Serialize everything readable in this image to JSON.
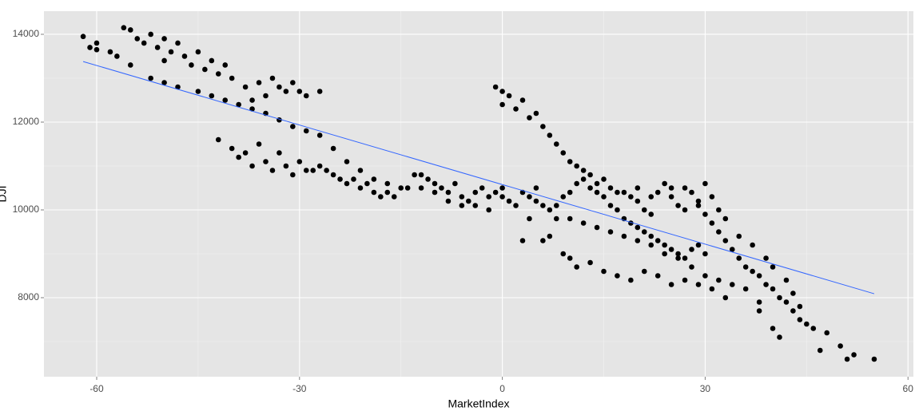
{
  "chart_data": {
    "type": "scatter",
    "x_label": "MarketIndex",
    "y_label": "DJI",
    "xlim": [
      -67.8,
      60.8
    ],
    "ylim": [
      6200,
      14527
    ],
    "xticks": [
      -60,
      -30,
      0,
      30,
      60
    ],
    "yticks": [
      8000,
      10000,
      12000,
      14000
    ],
    "xminor": [
      -45,
      -15,
      15,
      45
    ],
    "yminor": [
      7000,
      9000,
      11000,
      13000
    ],
    "grid": true,
    "color": "#000000",
    "trend": {
      "x": [
        -62,
        55
      ],
      "y": [
        13380,
        8090
      ],
      "color": "#3366ff"
    },
    "x": [
      -62,
      -61,
      -60,
      -60,
      -58,
      -57,
      -56,
      -55,
      -55,
      -54,
      -53,
      -52,
      -51,
      -50,
      -50,
      -49,
      -48,
      -47,
      -46,
      -45,
      -44,
      -43,
      -42,
      -41,
      -40,
      -52,
      -50,
      -48,
      -45,
      -43,
      -41,
      -39,
      -37,
      -35,
      -33,
      -31,
      -29,
      -27,
      -25,
      -23,
      -21,
      -19,
      -17,
      -15,
      -36,
      -35,
      -34,
      -33,
      -32,
      -31,
      -30,
      -29,
      -27,
      -38,
      -37,
      -42,
      -40,
      -39,
      -38,
      -37,
      -36,
      -35,
      -34,
      -33,
      -32,
      -31,
      -30,
      -29,
      -28,
      -27,
      -26,
      -25,
      -24,
      -23,
      -22,
      -21,
      -20,
      -19,
      -18,
      -17,
      -16,
      -14,
      -13,
      -12,
      -11,
      -10,
      -9,
      -8,
      -7,
      -6,
      -5,
      -4,
      -3,
      -2,
      -1,
      0,
      1,
      -12,
      -10,
      -8,
      -6,
      -4,
      -2,
      -1,
      0,
      0,
      1,
      2,
      3,
      4,
      5,
      6,
      7,
      8,
      9,
      10,
      11,
      12,
      13,
      14,
      15,
      16,
      17,
      18,
      19,
      20,
      21,
      22,
      23,
      24,
      25,
      26,
      27,
      28,
      29,
      30,
      31,
      32,
      33,
      34,
      35,
      36,
      37,
      38,
      39,
      40,
      41,
      42,
      43,
      44,
      46,
      48,
      47,
      50,
      52,
      55,
      51,
      45,
      38,
      40,
      41,
      3,
      4,
      5,
      6,
      7,
      8,
      9,
      10,
      11,
      12,
      13,
      14,
      15,
      16,
      17,
      18,
      19,
      20,
      21,
      22,
      23,
      24,
      25,
      26,
      27,
      28,
      29,
      30,
      8,
      10,
      12,
      14,
      16,
      18,
      20,
      22,
      24,
      26,
      28,
      30,
      32,
      34,
      36,
      38,
      6,
      7,
      9,
      10,
      11,
      13,
      15,
      17,
      19,
      21,
      23,
      25,
      27,
      29,
      31,
      33,
      3,
      4,
      5,
      0,
      2,
      20,
      22,
      25,
      27,
      29,
      31,
      32,
      30,
      33,
      35,
      37,
      39,
      40,
      42,
      43,
      44
    ],
    "values": [
      13950,
      13700,
      13800,
      13650,
      13600,
      13500,
      14150,
      14100,
      13300,
      13900,
      13800,
      14000,
      13700,
      13900,
      13400,
      13600,
      13800,
      13500,
      13300,
      13600,
      13200,
      13400,
      13100,
      13300,
      13000,
      13000,
      12900,
      12800,
      12700,
      12600,
      12500,
      12400,
      12300,
      12200,
      12050,
      11900,
      11800,
      11700,
      11400,
      11100,
      10900,
      10700,
      10600,
      10500,
      12900,
      12600,
      13000,
      12800,
      12700,
      12900,
      12700,
      12600,
      12700,
      12800,
      12500,
      11600,
      11400,
      11200,
      11300,
      11000,
      11500,
      11100,
      10900,
      11300,
      11000,
      10800,
      11100,
      10900,
      10900,
      11000,
      10900,
      10800,
      10700,
      10600,
      10700,
      10500,
      10600,
      10400,
      10300,
      10400,
      10300,
      10500,
      10800,
      10800,
      10700,
      10600,
      10500,
      10400,
      10600,
      10300,
      10200,
      10400,
      10500,
      10300,
      10400,
      10500,
      10200,
      10500,
      10400,
      10200,
      10100,
      10100,
      10000,
      12800,
      12700,
      12400,
      12600,
      12300,
      12500,
      12100,
      12200,
      11900,
      11700,
      11500,
      11300,
      11100,
      11000,
      10900,
      10800,
      10600,
      10700,
      10500,
      10400,
      10400,
      10300,
      10200,
      10000,
      9900,
      10400,
      10600,
      10300,
      10100,
      10500,
      10400,
      10200,
      9900,
      9700,
      9500,
      9300,
      9100,
      8900,
      8700,
      8600,
      8500,
      8300,
      8200,
      8000,
      7900,
      7700,
      7500,
      7300,
      7200,
      6800,
      6900,
      6700,
      6600,
      6600,
      7400,
      7700,
      7300,
      7100,
      10400,
      10300,
      10200,
      10100,
      10000,
      10100,
      10300,
      10400,
      10600,
      10700,
      10500,
      10400,
      10300,
      10100,
      10000,
      9800,
      9700,
      9600,
      9500,
      9400,
      9300,
      9200,
      9100,
      9000,
      8900,
      9100,
      9200,
      9000,
      9800,
      9800,
      9700,
      9600,
      9500,
      9400,
      9300,
      9200,
      9000,
      8900,
      8700,
      8500,
      8400,
      8300,
      8200,
      7900,
      9300,
      9400,
      9000,
      8900,
      8700,
      8800,
      8600,
      8500,
      8400,
      8600,
      8500,
      8300,
      8400,
      8300,
      8200,
      8000,
      9300,
      9800,
      10500,
      10300,
      10100,
      10500,
      10300,
      10500,
      10000,
      10100,
      10300,
      10000,
      10600,
      9800,
      9400,
      9200,
      8900,
      8700,
      8400,
      8100,
      7800
    ]
  }
}
